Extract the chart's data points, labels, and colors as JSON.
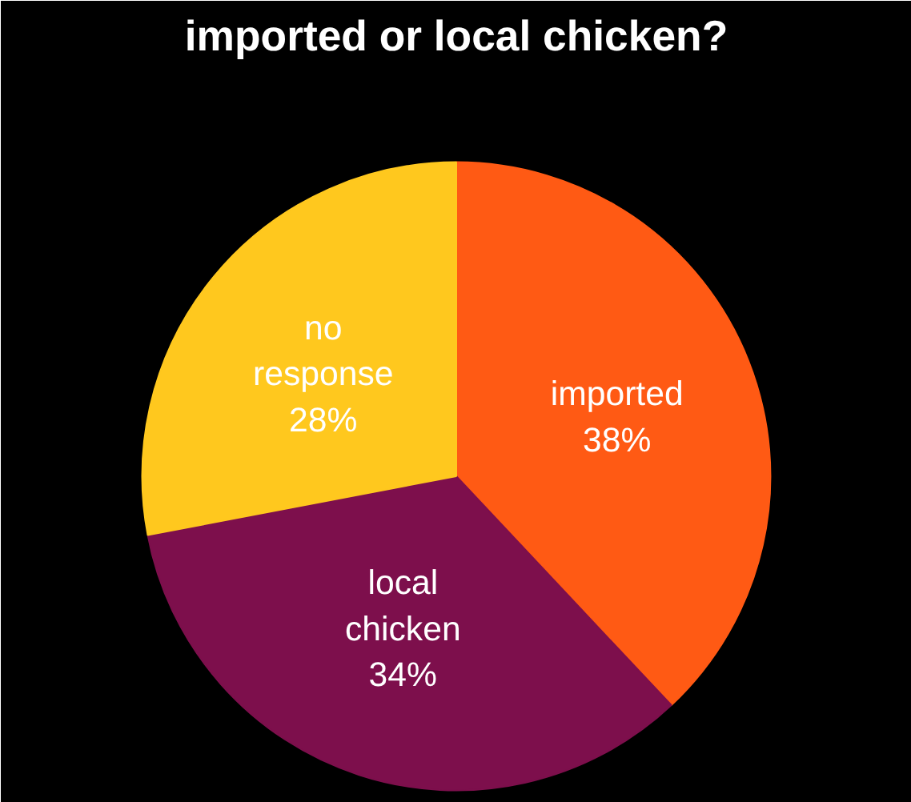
{
  "chart_data": {
    "type": "pie",
    "title": "imported or local chicken?",
    "categories": [
      "imported",
      "local chicken",
      "no response"
    ],
    "values": [
      38,
      34,
      28
    ],
    "colors": [
      "#ff5a14",
      "#7d0f4c",
      "#ffc81e"
    ],
    "value_labels": [
      "38%",
      "34%",
      "28%"
    ]
  }
}
